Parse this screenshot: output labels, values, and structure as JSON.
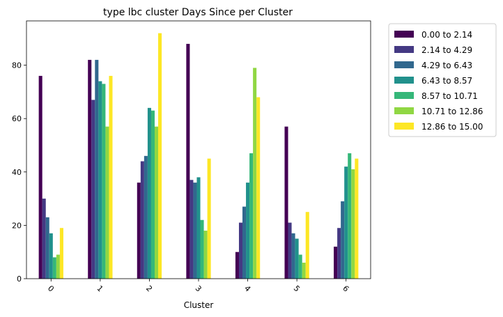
{
  "chart_data": {
    "type": "bar",
    "title": "type lbc cluster Days Since per Cluster",
    "xlabel": "Cluster",
    "ylabel": "",
    "categories": [
      "0",
      "1",
      "2",
      "3",
      "4",
      "5",
      "6"
    ],
    "ylim": [
      0,
      96.6
    ],
    "yticks": [
      0,
      20,
      40,
      60,
      80
    ],
    "grid": false,
    "legend_position": "outside-right",
    "series": [
      {
        "name": "0.00 to 2.14",
        "color": "#440154",
        "values": [
          76,
          82,
          36,
          88,
          10,
          57,
          12
        ]
      },
      {
        "name": "2.14 to 4.29",
        "color": "#443983",
        "values": [
          30,
          67,
          44,
          37,
          21,
          21,
          19
        ]
      },
      {
        "name": "4.29 to 6.43",
        "color": "#31688e",
        "values": [
          23,
          82,
          46,
          36,
          27,
          17,
          29
        ]
      },
      {
        "name": "6.43 to 8.57",
        "color": "#21918c",
        "values": [
          17,
          74,
          64,
          38,
          36,
          15,
          42
        ]
      },
      {
        "name": "8.57 to 10.71",
        "color": "#35b779",
        "values": [
          8,
          73,
          63,
          22,
          47,
          9,
          47
        ]
      },
      {
        "name": "10.71 to 12.86",
        "color": "#90d743",
        "values": [
          9,
          57,
          57,
          18,
          79,
          6,
          41
        ]
      },
      {
        "name": "12.86 to 15.00",
        "color": "#fde725",
        "values": [
          19,
          76,
          92,
          45,
          68,
          25,
          45
        ]
      }
    ]
  }
}
